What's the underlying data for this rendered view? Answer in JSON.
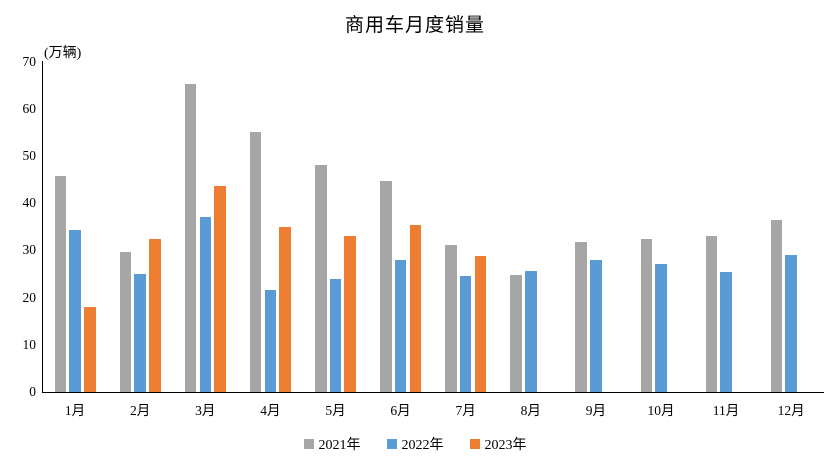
{
  "chart_data": {
    "type": "bar",
    "title": "商用车月度销量",
    "unit_label": "(万辆)",
    "categories": [
      "1月",
      "2月",
      "3月",
      "4月",
      "5月",
      "6月",
      "7月",
      "8月",
      "9月",
      "10月",
      "11月",
      "12月"
    ],
    "series": [
      {
        "name": "2021年",
        "color": "#A6A6A6",
        "values": [
          45.8,
          29.7,
          65.2,
          55.0,
          48.1,
          44.6,
          31.2,
          24.7,
          31.8,
          32.5,
          33.0,
          36.4
        ]
      },
      {
        "name": "2022年",
        "color": "#5B9BD5",
        "values": [
          34.4,
          25.0,
          37.0,
          21.6,
          23.9,
          28.0,
          24.5,
          25.7,
          27.9,
          27.2,
          25.4,
          29.1
        ]
      },
      {
        "name": "2023年",
        "color": "#ED7D31",
        "values": [
          18.1,
          32.4,
          43.6,
          34.9,
          33.0,
          35.4,
          28.8,
          null,
          null,
          null,
          null,
          null
        ]
      }
    ],
    "ylim": [
      0,
      70
    ],
    "yticks": [
      0,
      10,
      20,
      30,
      40,
      50,
      60,
      70
    ],
    "grid": false,
    "legend_position": "bottom",
    "axis_color": "#000000",
    "text_color": "#000000"
  }
}
